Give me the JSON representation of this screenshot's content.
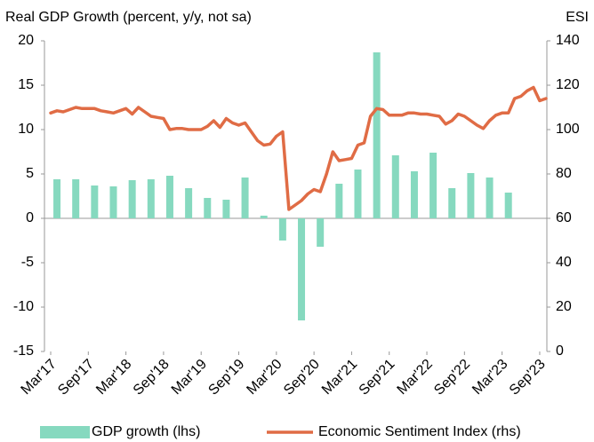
{
  "chart_data": {
    "type": "bar-line",
    "title": "Real GDP Growth (percent, y/y, not sa)",
    "y2_label": "ESI",
    "categories": [
      "Mar'17",
      null,
      null,
      null,
      null,
      null,
      "Sep'17",
      null,
      null,
      null,
      null,
      null,
      "Mar'18",
      null,
      null,
      null,
      null,
      null,
      "Sep'18",
      null,
      null,
      null,
      null,
      null,
      "Mar'19",
      null,
      null,
      null,
      null,
      null,
      "Sep'19",
      null,
      null,
      null,
      null,
      null,
      "Mar'20",
      null,
      null,
      null,
      null,
      null,
      "Sep'20",
      null,
      null,
      null,
      null,
      null,
      "Mar'21",
      null,
      null,
      null,
      null,
      null,
      "Sep'21",
      null,
      null,
      null,
      null,
      null,
      "Mar'22",
      null,
      null,
      null,
      null,
      null,
      "Sep'22",
      null,
      null,
      null,
      null,
      null,
      "Mar'23",
      null,
      null,
      null,
      null,
      null,
      "Sep'23",
      null
    ],
    "series": [
      {
        "name": "GDP growth (lhs)",
        "type": "bar",
        "axis": "y",
        "color": "#86d9bf",
        "values": [
          null,
          4.4,
          null,
          null,
          4.4,
          null,
          null,
          3.7,
          null,
          null,
          3.6,
          null,
          null,
          4.3,
          null,
          null,
          4.4,
          null,
          null,
          4.8,
          null,
          null,
          3.4,
          null,
          null,
          2.3,
          null,
          null,
          2.1,
          null,
          null,
          4.6,
          null,
          null,
          0.3,
          null,
          null,
          -2.5,
          null,
          null,
          -11.5,
          null,
          null,
          -3.2,
          null,
          null,
          3.9,
          null,
          null,
          5.5,
          null,
          null,
          18.7,
          null,
          null,
          7.1,
          null,
          null,
          5.3,
          null,
          null,
          7.4,
          null,
          null,
          3.4,
          null,
          null,
          5.1,
          null,
          null,
          4.6,
          null,
          null,
          2.9,
          null,
          null,
          null,
          null,
          null,
          null
        ]
      },
      {
        "name": "Economic Sentiment Index (rhs)",
        "type": "line",
        "axis": "y2",
        "color": "#e06c45",
        "values": [
          107.5,
          108.5,
          108,
          109,
          110,
          109.5,
          109.5,
          109.5,
          108.5,
          108,
          107.5,
          108.5,
          109.5,
          107,
          110,
          108,
          106,
          105.5,
          105,
          100,
          100.5,
          100.5,
          100,
          100,
          100,
          101.5,
          104,
          101,
          105,
          103,
          102,
          103,
          99,
          95,
          93,
          93.5,
          97,
          99,
          64,
          66,
          68,
          71,
          73,
          72,
          80,
          90,
          86,
          86.5,
          87,
          93,
          94,
          106,
          109.5,
          109,
          106.5,
          106.5,
          106.5,
          107.5,
          107.5,
          107,
          107,
          106.5,
          106,
          102.5,
          104,
          107,
          106,
          104,
          102,
          100.5,
          104,
          106.5,
          107.5,
          107.5,
          114,
          115,
          117.5,
          119,
          113,
          114
        ]
      }
    ],
    "ylim": [
      -15,
      20
    ],
    "yticks": [
      -15,
      -10,
      -5,
      0,
      5,
      10,
      15,
      20
    ],
    "y2lim": [
      0,
      140
    ],
    "y2ticks": [
      0,
      20,
      40,
      60,
      80,
      100,
      120,
      140
    ],
    "grid": false,
    "legend": "bottom"
  }
}
